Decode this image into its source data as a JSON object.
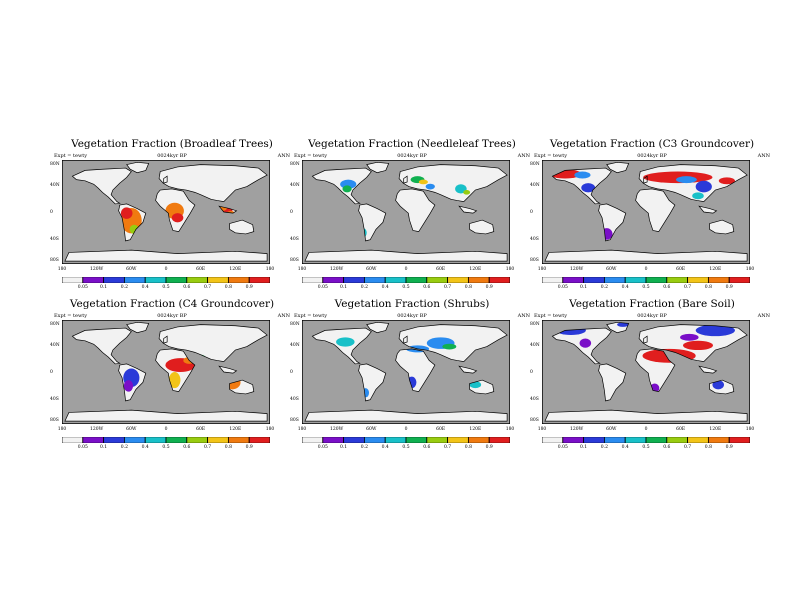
{
  "colors": {
    "ocean": "#a0a0a0",
    "land": "#f2f2f2",
    "palette": [
      "#f2f2f2",
      "#7a0fc8",
      "#2a3ad8",
      "#2a8cf0",
      "#18c0c8",
      "#10b050",
      "#98cc10",
      "#f2c418",
      "#f07a10",
      "#e01e1e"
    ]
  },
  "common": {
    "expt_label": "Expt = tewty",
    "subtitle": "0024kyr BP",
    "season": "ANN",
    "lat_labels": [
      "80N",
      "40N",
      "0",
      "40S",
      "80S"
    ],
    "lon_labels": [
      "180",
      "120W",
      "60W",
      "0",
      "60E",
      "120E",
      "180"
    ],
    "colorbar_labels": [
      "0.05",
      "0.1",
      "0.2",
      "0.4",
      "0.5",
      "0.6",
      "0.7",
      "0.8",
      "0.9"
    ]
  },
  "panels": [
    {
      "id": "broadleaf",
      "title": "Vegetation Fraction (Broadleaf Trees)"
    },
    {
      "id": "needleleaf",
      "title": "Vegetation Fraction (Needleleaf Trees)"
    },
    {
      "id": "c3",
      "title": "Vegetation Fraction (C3 Groundcover)"
    },
    {
      "id": "c4",
      "title": "Vegetation Fraction (C4 Groundcover)"
    },
    {
      "id": "shrubs",
      "title": "Vegetation Fraction (Shrubs)"
    },
    {
      "id": "baresoil",
      "title": "Vegetation Fraction (Bare Soil)"
    }
  ]
}
